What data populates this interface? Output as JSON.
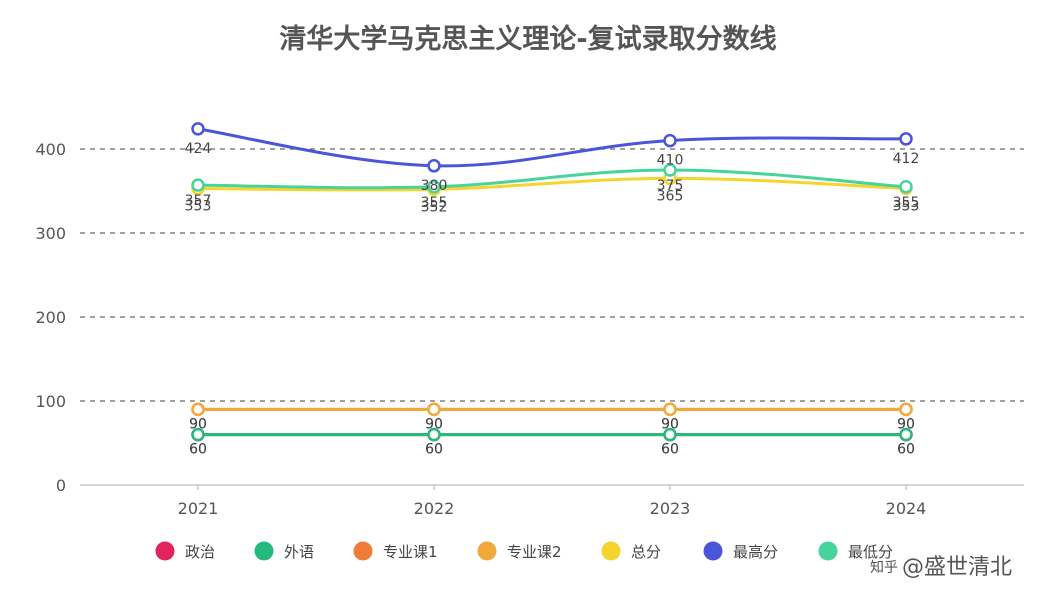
{
  "watermark": {
    "prefix": "知乎",
    "text": "@盛世清北"
  },
  "chart_data": {
    "type": "line",
    "title": "清华大学马克思主义理论-复试录取分数线",
    "categories": [
      "2021",
      "2022",
      "2023",
      "2024"
    ],
    "ylim": [
      0,
      450
    ],
    "yticks": [
      0,
      100,
      200,
      300,
      400
    ],
    "grid": true,
    "legend_position": "bottom",
    "series": [
      {
        "name": "政治",
        "color": "#e2245e",
        "values": [
          60,
          60,
          60,
          60
        ]
      },
      {
        "name": "外语",
        "color": "#24ba7c",
        "values": [
          60,
          60,
          60,
          60
        ]
      },
      {
        "name": "专业课1",
        "color": "#f07c37",
        "values": [
          90,
          90,
          90,
          90
        ]
      },
      {
        "name": "专业课2",
        "color": "#f2a93b",
        "values": [
          90,
          90,
          90,
          90
        ]
      },
      {
        "name": "总分",
        "color": "#f5d42e",
        "values": [
          353,
          352,
          365,
          353
        ]
      },
      {
        "name": "最高分",
        "color": "#4a55d9",
        "values": [
          424,
          380,
          410,
          412
        ]
      },
      {
        "name": "最低分",
        "color": "#46d49a",
        "values": [
          357,
          355,
          375,
          355
        ]
      }
    ]
  }
}
